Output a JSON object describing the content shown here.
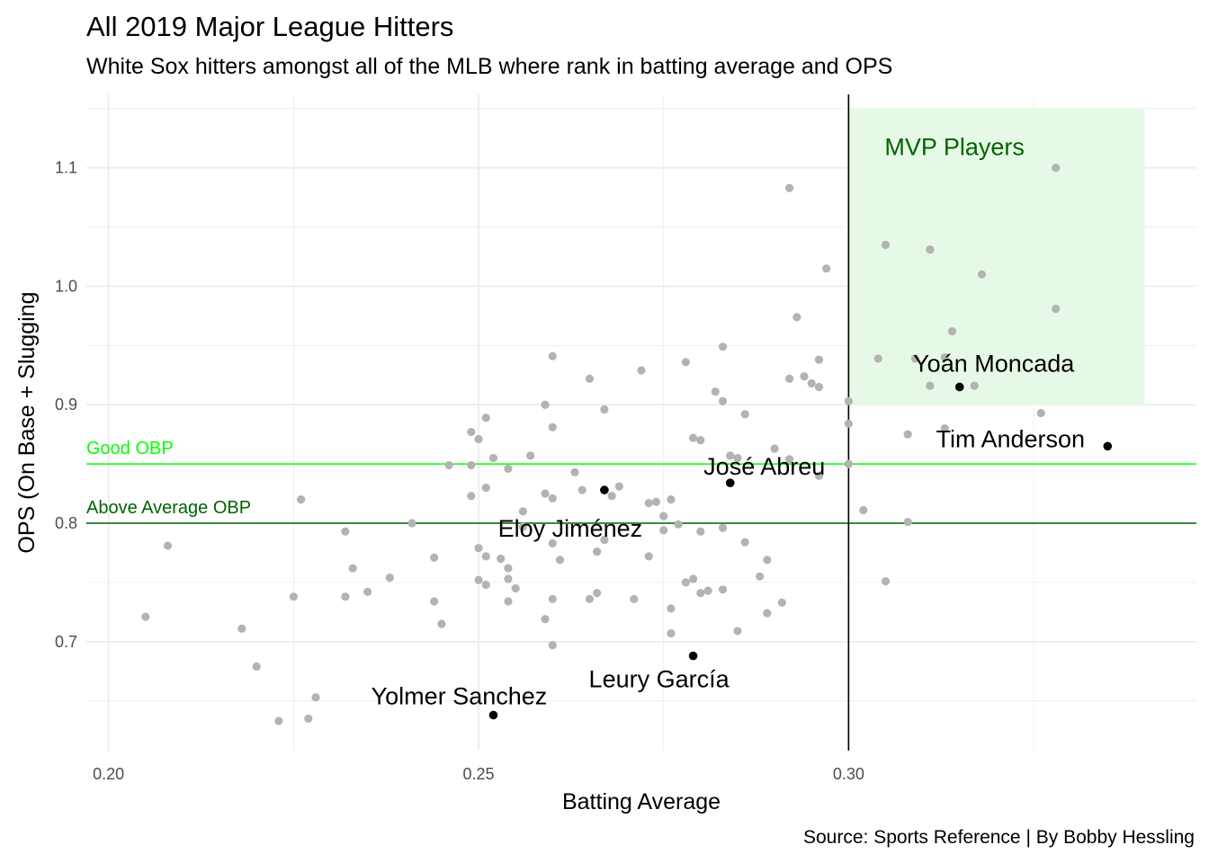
{
  "title": "All 2019 Major League Hitters",
  "subtitle": "White Sox hitters amongst all of the MLB where rank in batting average and OPS",
  "caption": "Source: Sports Reference | By Bobby Hessling",
  "colors": {
    "other_players": "#b3b3b3",
    "white_sox": "#000000",
    "mvp_region": "#e6f9e6",
    "mvp_text": "#006400",
    "good_obp_line": "#00ff00",
    "above_avg_obp_line": "#006400",
    "grid": "#ebebeb",
    "threshold_line": "#000000"
  },
  "chart_data": {
    "type": "scatter",
    "xlabel": "Batting Average",
    "ylabel": "OPS (On Base + Slugging",
    "xlim": [
      0.197,
      0.347
    ],
    "ylim": [
      0.608,
      1.162
    ],
    "xticks": [
      "0.20",
      "0.25",
      "0.30"
    ],
    "yticks": [
      "0.7",
      "0.8",
      "0.9",
      "1.0",
      "1.1"
    ],
    "grid": true,
    "mvp_region": {
      "label": "MVP Players",
      "x": [
        0.3,
        0.34
      ],
      "y": [
        0.9,
        1.15
      ]
    },
    "hlines": [
      {
        "y": 0.85,
        "label": "Good OBP",
        "color": "#00ff00"
      },
      {
        "y": 0.8,
        "label": "Above Average OBP",
        "color": "#006400"
      }
    ],
    "vline": {
      "x": 0.3
    },
    "series": [
      {
        "points": [
          [
            0.205,
            0.721
          ],
          [
            0.208,
            0.781
          ],
          [
            0.218,
            0.711
          ],
          [
            0.22,
            0.679
          ],
          [
            0.223,
            0.633
          ],
          [
            0.225,
            0.738
          ],
          [
            0.226,
            0.82
          ],
          [
            0.227,
            0.635
          ],
          [
            0.228,
            0.653
          ],
          [
            0.232,
            0.738
          ],
          [
            0.232,
            0.793
          ],
          [
            0.233,
            0.762
          ],
          [
            0.235,
            0.742
          ],
          [
            0.238,
            0.754
          ],
          [
            0.241,
            0.8
          ],
          [
            0.244,
            0.771
          ],
          [
            0.244,
            0.734
          ],
          [
            0.245,
            0.715
          ],
          [
            0.246,
            0.849
          ],
          [
            0.249,
            0.849
          ],
          [
            0.249,
            0.823
          ],
          [
            0.249,
            0.877
          ],
          [
            0.25,
            0.871
          ],
          [
            0.25,
            0.779
          ],
          [
            0.25,
            0.752
          ],
          [
            0.251,
            0.889
          ],
          [
            0.251,
            0.83
          ],
          [
            0.251,
            0.772
          ],
          [
            0.251,
            0.748
          ],
          [
            0.252,
            0.855
          ],
          [
            0.253,
            0.77
          ],
          [
            0.254,
            0.753
          ],
          [
            0.254,
            0.762
          ],
          [
            0.254,
            0.734
          ],
          [
            0.254,
            0.846
          ],
          [
            0.255,
            0.745
          ],
          [
            0.256,
            0.797
          ],
          [
            0.256,
            0.81
          ],
          [
            0.257,
            0.857
          ],
          [
            0.259,
            0.9
          ],
          [
            0.259,
            0.825
          ],
          [
            0.259,
            0.719
          ],
          [
            0.26,
            0.941
          ],
          [
            0.26,
            0.881
          ],
          [
            0.26,
            0.821
          ],
          [
            0.26,
            0.783
          ],
          [
            0.26,
            0.736
          ],
          [
            0.26,
            0.697
          ],
          [
            0.261,
            0.769
          ],
          [
            0.263,
            0.843
          ],
          [
            0.264,
            0.828
          ],
          [
            0.265,
            0.922
          ],
          [
            0.265,
            0.736
          ],
          [
            0.266,
            0.776
          ],
          [
            0.266,
            0.741
          ],
          [
            0.267,
            0.896
          ],
          [
            0.267,
            0.786
          ],
          [
            0.268,
            0.823
          ],
          [
            0.269,
            0.831
          ],
          [
            0.271,
            0.736
          ],
          [
            0.272,
            0.929
          ],
          [
            0.273,
            0.772
          ],
          [
            0.273,
            0.817
          ],
          [
            0.274,
            0.818
          ],
          [
            0.275,
            0.794
          ],
          [
            0.275,
            0.806
          ],
          [
            0.276,
            0.82
          ],
          [
            0.276,
            0.728
          ],
          [
            0.276,
            0.707
          ],
          [
            0.277,
            0.799
          ],
          [
            0.278,
            0.936
          ],
          [
            0.278,
            0.75
          ],
          [
            0.279,
            0.872
          ],
          [
            0.279,
            0.753
          ],
          [
            0.28,
            0.87
          ],
          [
            0.28,
            0.741
          ],
          [
            0.28,
            0.793
          ],
          [
            0.281,
            0.743
          ],
          [
            0.282,
            0.911
          ],
          [
            0.283,
            0.949
          ],
          [
            0.283,
            0.903
          ],
          [
            0.283,
            0.796
          ],
          [
            0.283,
            0.744
          ],
          [
            0.284,
            0.857
          ],
          [
            0.285,
            0.855
          ],
          [
            0.285,
            0.709
          ],
          [
            0.286,
            0.892
          ],
          [
            0.286,
            0.784
          ],
          [
            0.288,
            0.755
          ],
          [
            0.289,
            0.769
          ],
          [
            0.289,
            0.724
          ],
          [
            0.29,
            0.863
          ],
          [
            0.291,
            0.733
          ],
          [
            0.292,
            0.854
          ],
          [
            0.292,
            0.922
          ],
          [
            0.292,
            1.083
          ],
          [
            0.293,
            0.974
          ],
          [
            0.294,
            0.924
          ],
          [
            0.295,
            0.918
          ],
          [
            0.296,
            0.915
          ],
          [
            0.296,
            0.938
          ],
          [
            0.296,
            0.84
          ],
          [
            0.297,
            1.015
          ],
          [
            0.3,
            0.903
          ],
          [
            0.3,
            0.884
          ],
          [
            0.3,
            0.85
          ],
          [
            0.302,
            0.811
          ],
          [
            0.304,
            0.939
          ],
          [
            0.305,
            1.035
          ],
          [
            0.305,
            0.751
          ],
          [
            0.308,
            0.801
          ],
          [
            0.308,
            0.875
          ],
          [
            0.309,
            0.939
          ],
          [
            0.311,
            1.031
          ],
          [
            0.311,
            0.916
          ],
          [
            0.313,
            0.94
          ],
          [
            0.313,
            0.88
          ],
          [
            0.314,
            0.962
          ],
          [
            0.317,
            0.916
          ],
          [
            0.318,
            1.01
          ],
          [
            0.326,
            0.893
          ],
          [
            0.328,
            1.1
          ],
          [
            0.328,
            0.981
          ]
        ]
      },
      {
        "points": [
          {
            "label": "Yoán Moncada",
            "x": 0.315,
            "y": 0.915
          },
          {
            "label": "Tim Anderson",
            "x": 0.335,
            "y": 0.865
          },
          {
            "label": "José Abreu",
            "x": 0.284,
            "y": 0.834
          },
          {
            "label": "Eloy Jiménez",
            "x": 0.267,
            "y": 0.828
          },
          {
            "label": "Leury García",
            "x": 0.279,
            "y": 0.688
          },
          {
            "label": "Yolmer Sanchez",
            "x": 0.252,
            "y": 0.638
          }
        ]
      }
    ]
  }
}
